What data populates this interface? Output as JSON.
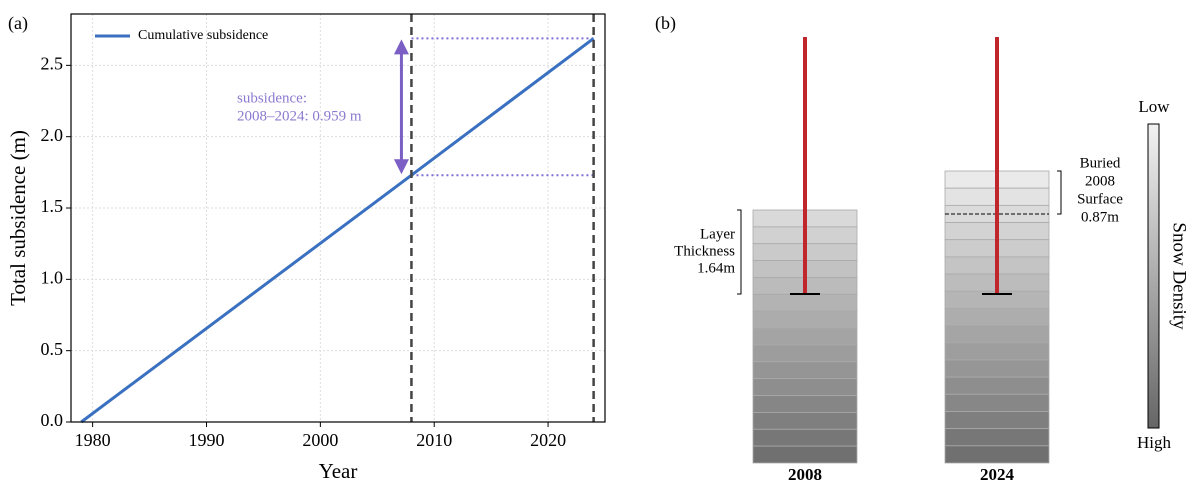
{
  "chart_data": {
    "type": "line",
    "panel_label": "(a)",
    "x_label": "Year",
    "y_label": "Total subsidence (m)",
    "x": [
      1979,
      2008,
      2024
    ],
    "series": [
      {
        "name": "Cumulative subsidence",
        "color": "#3a70c0",
        "values": [
          0,
          1.73,
          2.689
        ]
      }
    ],
    "xlim": [
      1978.1,
      2025
    ],
    "ylim": [
      0,
      2.86
    ],
    "xticks": [
      1980,
      1990,
      2000,
      2010,
      2020
    ],
    "yticks": [
      {
        "value": 0,
        "label": "0.0"
      },
      0.5,
      {
        "value": 1,
        "label": "1.0"
      },
      1.5,
      {
        "value": 2,
        "label": "2.0"
      },
      2.5
    ],
    "grid": true,
    "legend": "upper left",
    "reference_years": [
      2008,
      2024
    ],
    "reference_levels": [
      1.73,
      2.689
    ],
    "annotation": [
      "subsidence:",
      "2008–2024: 0.959 m"
    ],
    "annotation_color": "#8c7ad0"
  },
  "diagram": {
    "panel_label": "(b)",
    "columns": [
      "2008",
      "2024"
    ],
    "layer_thickness": [
      "Layer",
      "Thickness",
      "1.64m"
    ],
    "buried_surface": [
      "Buried",
      "2008",
      "Surface",
      "0.87m"
    ],
    "colorbar": {
      "low": "Low",
      "high": "High",
      "label": "Snow Density"
    }
  }
}
